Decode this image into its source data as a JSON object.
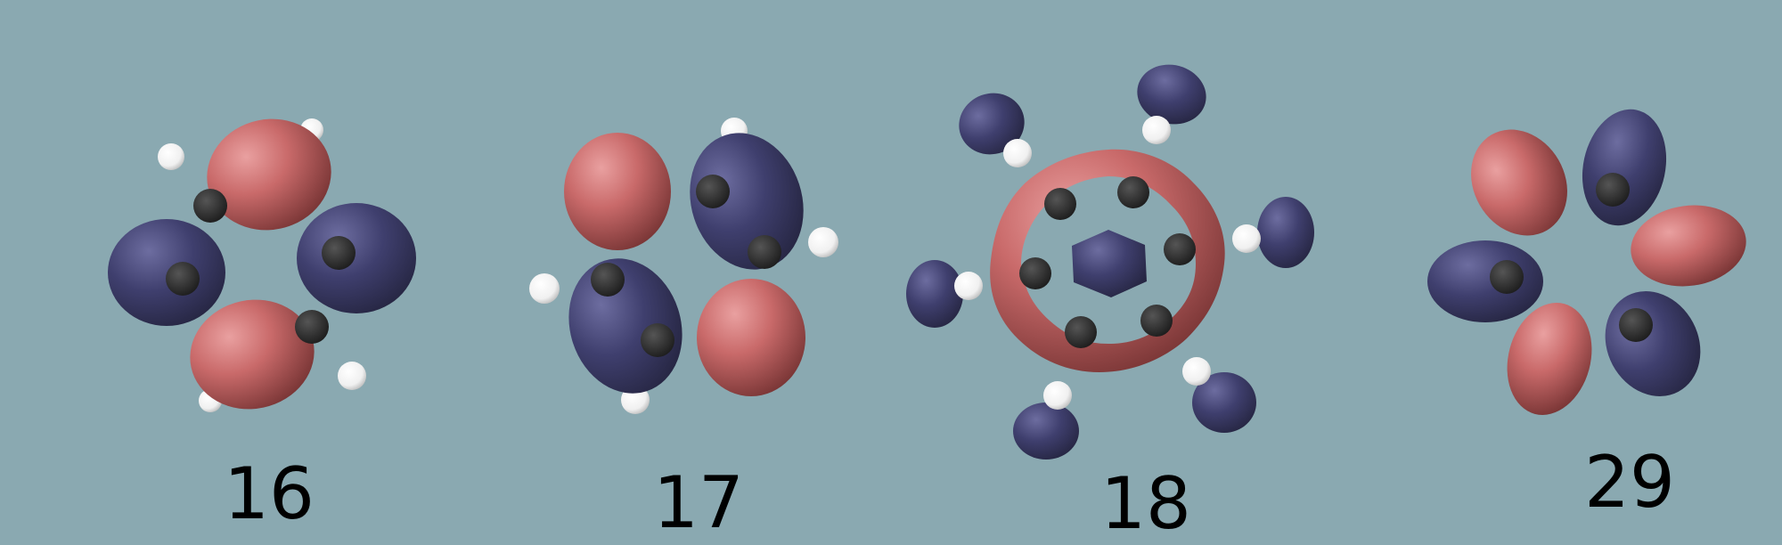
{
  "figure": {
    "colors": {
      "background": "#8aa9b1",
      "positive_lobe": "#c96a6a",
      "negative_lobe": "#3f3f6e",
      "carbon_atom": "#2a2a2a",
      "hydrogen_atom": "#ffffff"
    },
    "orbitals": [
      {
        "label": "16"
      },
      {
        "label": "17"
      },
      {
        "label": "18"
      },
      {
        "label": "29"
      }
    ]
  }
}
